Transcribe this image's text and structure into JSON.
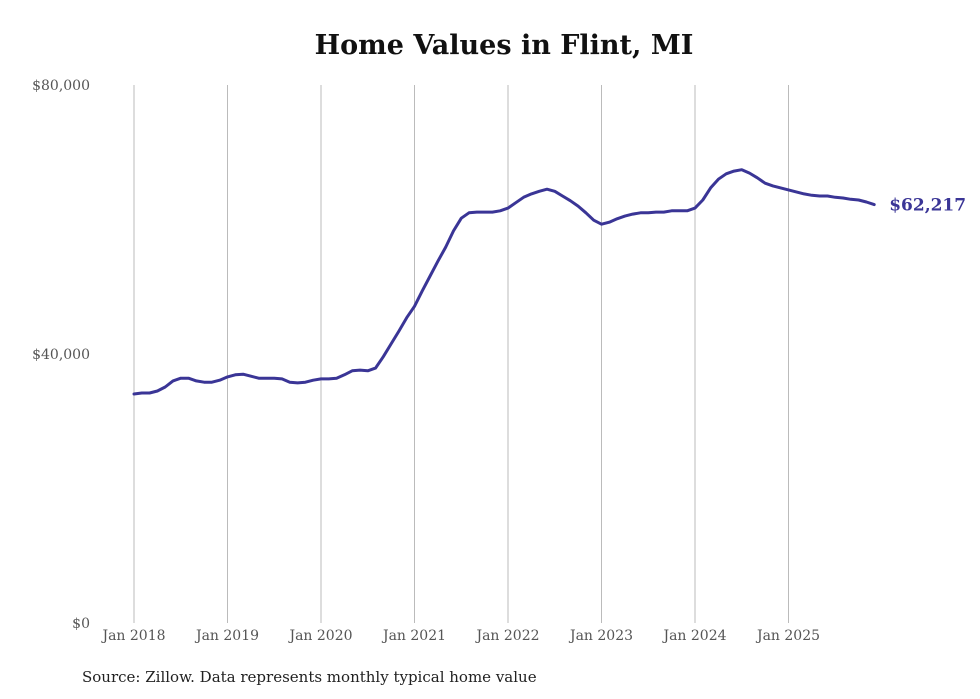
{
  "chart_data": {
    "type": "line",
    "title": "Home Values in Flint, MI",
    "xlabel": "",
    "ylabel": "",
    "ylim": [
      0,
      80000
    ],
    "y_ticks": [
      {
        "value": 0,
        "label": "$0"
      },
      {
        "value": 40000,
        "label": "$40,000"
      },
      {
        "value": 80000,
        "label": "$80,000"
      }
    ],
    "x_ticks": [
      "Jan 2018",
      "Jan 2019",
      "Jan 2020",
      "Jan 2021",
      "Jan 2022",
      "Jan 2023",
      "Jan 2024",
      "Jan 2025"
    ],
    "grid": "vertical",
    "x_start": "Jan 2018",
    "frequency": "monthly",
    "series": [
      {
        "name": "Typical home value",
        "color": "#3a3596",
        "values": [
          34050,
          34200,
          34200,
          34500,
          35100,
          36000,
          36400,
          36400,
          36000,
          35800,
          35800,
          36100,
          36600,
          36900,
          37000,
          36700,
          36400,
          36400,
          36400,
          36300,
          35800,
          35700,
          35800,
          36100,
          36300,
          36300,
          36400,
          36900,
          37500,
          37600,
          37500,
          37900,
          39600,
          41500,
          43400,
          45400,
          47100,
          49400,
          51600,
          53800,
          55900,
          58300,
          60200,
          61000,
          61100,
          61100,
          61100,
          61300,
          61700,
          62500,
          63300,
          63800,
          64200,
          64500,
          64200,
          63500,
          62800,
          62000,
          61000,
          59900,
          59300,
          59600,
          60100,
          60500,
          60800,
          61000,
          61000,
          61100,
          61100,
          61300,
          61300,
          61300,
          61700,
          62900,
          64700,
          66000,
          66800,
          67200,
          67400,
          66900,
          66200,
          65400,
          65000,
          64700,
          64400,
          64100,
          63800,
          63600,
          63500,
          63500,
          63300,
          63200,
          63000,
          62900,
          62600,
          62217
        ]
      }
    ],
    "end_label": "$62,217"
  },
  "source": "Source: Zillow. Data represents monthly typical home value"
}
